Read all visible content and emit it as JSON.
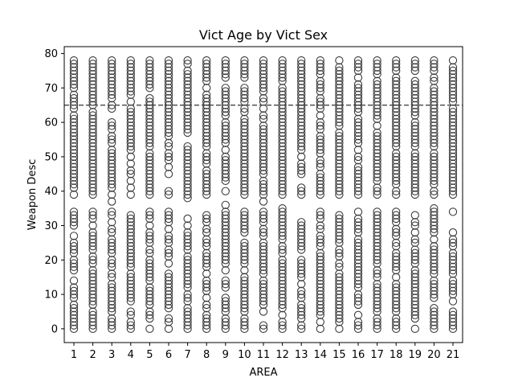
{
  "chart_data": {
    "type": "scatter",
    "title": "Vict Age by Vict Sex",
    "xlabel": "AREA",
    "ylabel": "Weapon Desc",
    "categories": [
      "1",
      "2",
      "3",
      "4",
      "5",
      "6",
      "7",
      "8",
      "9",
      "10",
      "11",
      "12",
      "13",
      "14",
      "15",
      "16",
      "17",
      "18",
      "19",
      "20",
      "21"
    ],
    "ylim": [
      -4,
      82
    ],
    "yticks": [
      0,
      10,
      20,
      30,
      40,
      50,
      60,
      70,
      80
    ],
    "grid": false,
    "legend": "none",
    "reference_line": {
      "y": 65,
      "style": "dashed"
    },
    "marker": "hollow-circle",
    "colors": {
      "marker": "#3b3b3b",
      "reference_line": "#555555",
      "axes": "#000000"
    },
    "series": [
      {
        "values_description_free": true,
        "upper_band": [
          39,
          78
        ],
        "lower_band": [
          0,
          34
        ],
        "outliers": [
          {
            "x": "3",
            "y": 37
          },
          {
            "x": "7",
            "y": 38
          },
          {
            "x": "9",
            "y": 36
          },
          {
            "x": "11",
            "y": 37
          },
          {
            "x": "12",
            "y": 35
          },
          {
            "x": "20",
            "y": 35
          }
        ]
      }
    ]
  }
}
